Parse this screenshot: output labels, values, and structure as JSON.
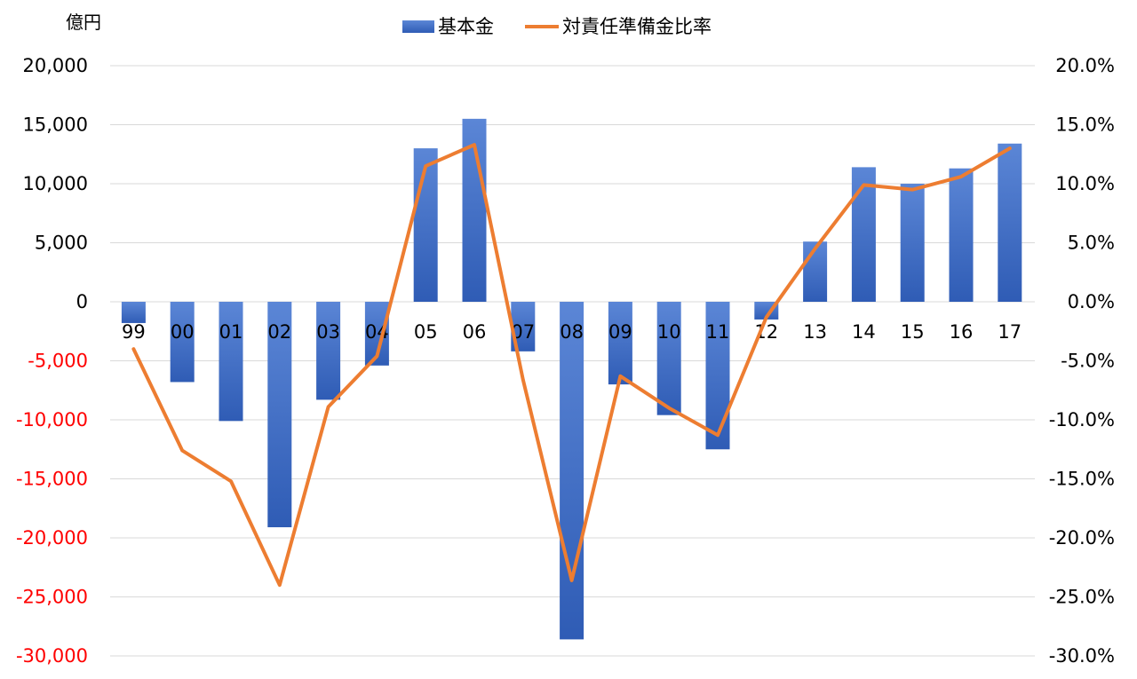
{
  "chart_data": {
    "type": "bar",
    "title": "",
    "y_unit_label": "億円",
    "categories": [
      "99",
      "00",
      "01",
      "02",
      "03",
      "04",
      "05",
      "06",
      "07",
      "08",
      "09",
      "10",
      "11",
      "12",
      "13",
      "14",
      "15",
      "16",
      "17"
    ],
    "series": [
      {
        "name": "基本金",
        "type": "bar",
        "axis": "left",
        "values": [
          -1800,
          -6800,
          -10100,
          -19100,
          -8300,
          -5400,
          13000,
          15500,
          -4200,
          -28600,
          -7000,
          -9600,
          -12500,
          -1500,
          5100,
          11400,
          10000,
          11300,
          13400
        ]
      },
      {
        "name": "対責任準備金比率",
        "type": "line",
        "axis": "right",
        "unit": "%",
        "values": [
          -4.0,
          -12.6,
          -15.2,
          -24.0,
          -8.9,
          -4.6,
          11.5,
          13.3,
          -6.6,
          -23.6,
          -6.3,
          -9.0,
          -11.3,
          -1.3,
          4.5,
          9.9,
          9.5,
          10.6,
          13.0
        ]
      }
    ],
    "y_left": {
      "min": -30000,
      "max": 20000,
      "step": 5000,
      "tick_labels": [
        "20,000",
        "15,000",
        "10,000",
        "5,000",
        "0",
        "-5,000",
        "-10,000",
        "-15,000",
        "-20,000",
        "-25,000",
        "-30,000"
      ]
    },
    "y_right": {
      "min": -30,
      "max": 20,
      "step": 5,
      "tick_labels": [
        "20.0%",
        "15.0%",
        "10.0%",
        "5.0%",
        "0.0%",
        "-5.0%",
        "-10.0%",
        "-15.0%",
        "-20.0%",
        "-25.0%",
        "-30.0%"
      ]
    },
    "grid": true,
    "legend_position": "top-center",
    "colors": {
      "bar": "#4472c4",
      "bar_light": "#5b86d6",
      "bar_dark": "#2f5cb5",
      "line": "#ed7d31",
      "gridline": "#d9d9d9",
      "negative_tick": "#ff0000",
      "positive_tick": "#000000"
    }
  }
}
